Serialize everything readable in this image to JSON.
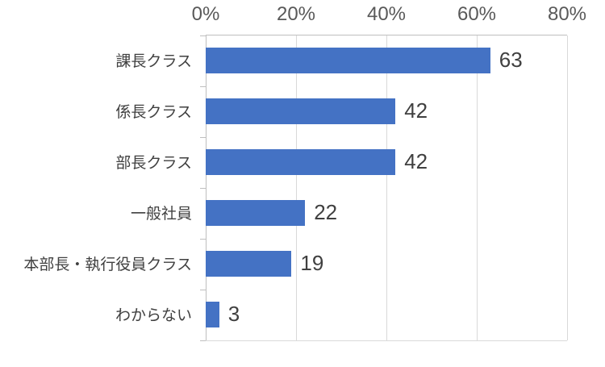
{
  "chart_data": {
    "type": "bar",
    "orientation": "horizontal",
    "categories": [
      "課長クラス",
      "係長クラス",
      "部長クラス",
      "一般社員",
      "本部長・執行役員クラス",
      "わからない"
    ],
    "values": [
      63,
      42,
      42,
      22,
      19,
      3
    ],
    "data_labels": [
      "63",
      "42",
      "42",
      "22",
      "19",
      "3"
    ],
    "x_axis": {
      "position": "top",
      "ticks": [
        "0%",
        "20%",
        "40%",
        "60%",
        "80%"
      ],
      "tick_values": [
        0,
        20,
        40,
        60,
        80
      ],
      "min": 0,
      "max": 80
    },
    "grid": true,
    "legend": "none",
    "colors": {
      "bar": "#4472C4",
      "data_label": "#404040",
      "category_label": "#404040",
      "axis_tick_label": "#595959",
      "gridline": "#D9D9D9",
      "axis_line": "#BFBFBF"
    }
  }
}
